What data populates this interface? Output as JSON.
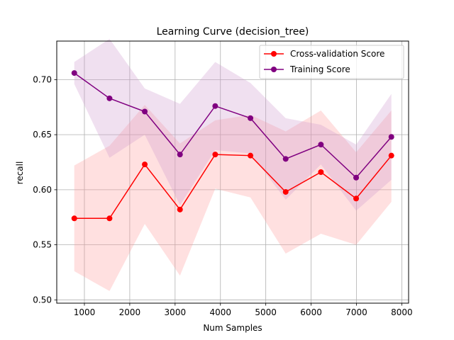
{
  "chart_data": {
    "type": "line",
    "title": "Learning Curve (decision_tree)",
    "xlabel": "Num Samples",
    "ylabel": "recall",
    "xlim": [
      390,
      8150
    ],
    "ylim": [
      0.497,
      0.735
    ],
    "xticks": [
      1000,
      2000,
      3000,
      4000,
      5000,
      6000,
      7000,
      8000
    ],
    "yticks": [
      0.5,
      0.55,
      0.6,
      0.65,
      0.7
    ],
    "xtick_labels": [
      "1000",
      "2000",
      "3000",
      "4000",
      "5000",
      "6000",
      "7000",
      "8000"
    ],
    "ytick_labels": [
      "0.50",
      "0.55",
      "0.60",
      "0.65",
      "0.70"
    ],
    "grid": true,
    "legend_position": "top-right",
    "x": [
      777,
      1554,
      2331,
      3108,
      3885,
      4662,
      5439,
      6216,
      6993,
      7770
    ],
    "series": [
      {
        "name": "Cross-validation Score",
        "color": "#ff0000",
        "band_color": "#ff9999",
        "values": [
          0.574,
          0.574,
          0.623,
          0.582,
          0.632,
          0.631,
          0.598,
          0.616,
          0.592,
          0.631
        ],
        "upper": [
          0.622,
          0.64,
          0.677,
          0.642,
          0.663,
          0.668,
          0.653,
          0.672,
          0.634,
          0.672
        ],
        "lower": [
          0.526,
          0.508,
          0.569,
          0.522,
          0.601,
          0.593,
          0.542,
          0.56,
          0.55,
          0.589
        ]
      },
      {
        "name": "Training Score",
        "color": "#800080",
        "band_color": "#cc99cc",
        "values": [
          0.706,
          0.683,
          0.671,
          0.632,
          0.676,
          0.665,
          0.628,
          0.641,
          0.611,
          0.648
        ],
        "upper": [
          0.716,
          0.737,
          0.692,
          0.678,
          0.716,
          0.697,
          0.665,
          0.659,
          0.641,
          0.687
        ],
        "lower": [
          0.696,
          0.629,
          0.65,
          0.586,
          0.636,
          0.633,
          0.591,
          0.623,
          0.581,
          0.609
        ]
      }
    ]
  }
}
